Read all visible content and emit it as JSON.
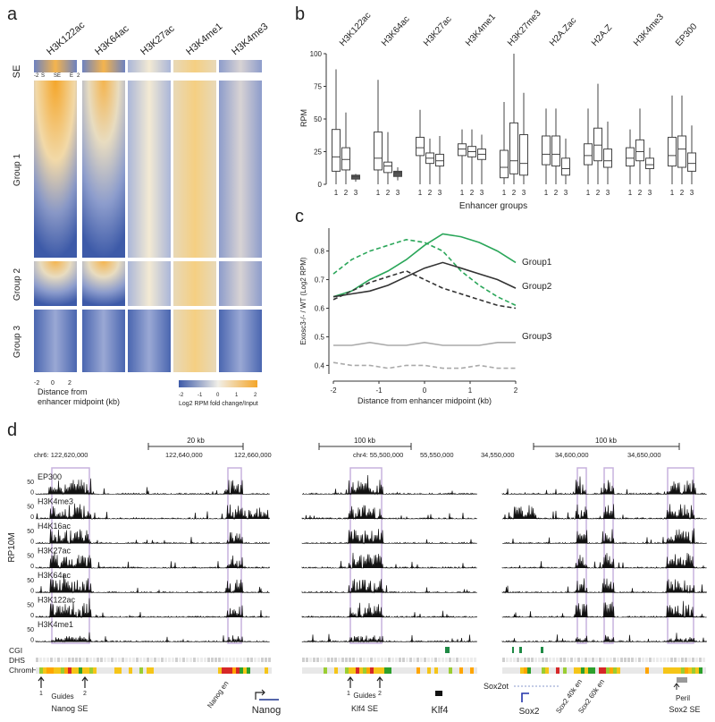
{
  "panel_a": {
    "letter": "a",
    "marks": [
      "H3K122ac",
      "H3K64ac",
      "H3K27ac",
      "H3K4me1",
      "H3K4me3"
    ],
    "row_se": "SE",
    "se_axis": {
      "left": "-2",
      "s": "S",
      "mid": "SE",
      "e": "E",
      "right": "2"
    },
    "groups": [
      "Group 1",
      "Group 2",
      "Group 3"
    ],
    "x_ticks": [
      "-2",
      "0",
      "2"
    ],
    "x_label_1": "Distance from",
    "x_label_2": "enhancer midpoint (kb)",
    "colorbar_ticks": [
      "-2",
      "-1",
      "0",
      "1",
      "2"
    ],
    "colorbar_label": "Log2 RPM fold change/Input",
    "colors": {
      "low": "#3d5aa8",
      "mid": "#f1efe8",
      "high": "#f4a62a"
    }
  },
  "chart_data": [
    {
      "type": "box",
      "panel": "b",
      "ylabel": "RPM",
      "xlabel": "Enhancer groups",
      "ylim": [
        0,
        100
      ],
      "y_ticks": [
        0,
        25,
        50,
        75,
        100
      ],
      "marks": [
        "H3K122ac",
        "H3K64ac",
        "H3K27ac",
        "H3K4me1",
        "H3K27me3",
        "H2A.Zac",
        "H2A.Z",
        "H3K4me3",
        "EP300"
      ],
      "group_labels": [
        "1",
        "2",
        "3"
      ],
      "boxes": [
        [
          [
            0,
            10,
            21,
            42,
            88
          ],
          [
            0,
            11,
            19,
            28,
            55
          ],
          [
            2,
            4,
            6,
            7,
            8
          ]
        ],
        [
          [
            0,
            11,
            20,
            40,
            80
          ],
          [
            0,
            9,
            14,
            17,
            40
          ],
          [
            3,
            6,
            9,
            10,
            13
          ]
        ],
        [
          [
            0,
            22,
            28,
            36,
            57
          ],
          [
            0,
            16,
            20,
            24,
            35
          ],
          [
            0,
            14,
            18,
            23,
            37
          ]
        ],
        [
          [
            0,
            22,
            27,
            31,
            42
          ],
          [
            0,
            21,
            25,
            29,
            42
          ],
          [
            0,
            19,
            23,
            27,
            38
          ]
        ],
        [
          [
            0,
            5,
            13,
            26,
            63
          ],
          [
            0,
            8,
            18,
            47,
            100
          ],
          [
            0,
            7,
            16,
            38,
            70
          ]
        ],
        [
          [
            0,
            15,
            23,
            37,
            58
          ],
          [
            0,
            14,
            23,
            37,
            58
          ],
          [
            0,
            7,
            12,
            20,
            35
          ]
        ],
        [
          [
            0,
            15,
            22,
            31,
            58
          ],
          [
            0,
            18,
            30,
            43,
            77
          ],
          [
            0,
            13,
            18,
            27,
            48
          ]
        ],
        [
          [
            0,
            14,
            20,
            28,
            42
          ],
          [
            0,
            18,
            25,
            34,
            58
          ],
          [
            0,
            12,
            15,
            20,
            28
          ]
        ],
        [
          [
            0,
            14,
            22,
            36,
            68
          ],
          [
            0,
            13,
            27,
            37,
            68
          ],
          [
            0,
            10,
            16,
            24,
            45
          ]
        ]
      ]
    },
    {
      "type": "line",
      "panel": "c",
      "xlabel": "Distance from enhancer midpoint (kb)",
      "ylabel": "Exosc3-/- / WT (Log2 RPM)",
      "xlim": [
        -2,
        2
      ],
      "ylim": [
        0.37,
        0.88
      ],
      "x_ticks": [
        -2,
        -1,
        0,
        1,
        2
      ],
      "y_ticks": [
        0.4,
        0.5,
        0.6,
        0.7,
        0.8
      ],
      "x": [
        -2,
        -1.6,
        -1.2,
        -0.8,
        -0.4,
        0,
        0.4,
        0.8,
        1.2,
        1.6,
        2
      ],
      "series": [
        {
          "name": "Group1",
          "style": "solid",
          "color": "#2aa659",
          "values": [
            0.64,
            0.66,
            0.7,
            0.73,
            0.77,
            0.82,
            0.86,
            0.85,
            0.83,
            0.8,
            0.76
          ]
        },
        {
          "name": "Group1 dashed",
          "style": "dashed",
          "color": "#2aa659",
          "values": [
            0.72,
            0.77,
            0.8,
            0.82,
            0.84,
            0.83,
            0.8,
            0.73,
            0.68,
            0.64,
            0.61
          ]
        },
        {
          "name": "Group2",
          "style": "solid",
          "color": "#333333",
          "values": [
            0.64,
            0.65,
            0.66,
            0.68,
            0.71,
            0.74,
            0.76,
            0.74,
            0.72,
            0.7,
            0.67
          ]
        },
        {
          "name": "Group2 dashed",
          "style": "dashed",
          "color": "#333333",
          "values": [
            0.63,
            0.66,
            0.69,
            0.71,
            0.73,
            0.7,
            0.67,
            0.65,
            0.63,
            0.61,
            0.6
          ]
        },
        {
          "name": "Group3",
          "style": "solid",
          "color": "#aaaaaa",
          "values": [
            0.47,
            0.47,
            0.48,
            0.47,
            0.47,
            0.48,
            0.47,
            0.47,
            0.47,
            0.48,
            0.48
          ]
        },
        {
          "name": "Group3 dashed",
          "style": "dashed",
          "color": "#aaaaaa",
          "values": [
            0.41,
            0.4,
            0.4,
            0.39,
            0.4,
            0.4,
            0.39,
            0.39,
            0.4,
            0.39,
            0.39
          ]
        }
      ],
      "legend": [
        "Group1",
        "Group2",
        "Group3"
      ]
    }
  ],
  "panel_labels": {
    "b": "b",
    "c": "c"
  },
  "panel_d": {
    "letter": "d",
    "y_label": "RP10M",
    "y_tick_top": "50",
    "y_tick_zero": "0",
    "tracks": [
      "EP300",
      "H3K4me3",
      "H4K16ac",
      "H3K27ac",
      "H3K64ac",
      "H3K122ac",
      "H3K4me1"
    ],
    "annotation_rows": [
      "CGI",
      "DHS",
      "ChromHmm"
    ],
    "loci": [
      {
        "scale": "20 kb",
        "chrom": "chr6:",
        "coords": [
          "122,620,000",
          "122,640,000",
          "122,660,000"
        ],
        "guides_label": "Guides",
        "guide_nums": [
          "1",
          "2"
        ],
        "se_label": "Nanog SE",
        "extra_label": "Nanog en",
        "gene": "Nanog"
      },
      {
        "scale": "100 kb",
        "chrom": "chr4:",
        "coords": [
          "55,500,000",
          "55,550,000"
        ],
        "guides_label": "Guides",
        "guide_nums": [
          "1",
          "2"
        ],
        "se_label": "Klf4 SE",
        "gene": "Klf4"
      },
      {
        "scale": "100 kb",
        "coords": [
          "34,550,000",
          "34,600,000",
          "34,650,000"
        ],
        "gene_top": "Sox2ot",
        "gene": "Sox2",
        "en1": "Sox2 40k en",
        "en2": "Sox2 60k en",
        "peri": "Peril",
        "se_label": "Sox2 SE"
      }
    ]
  }
}
